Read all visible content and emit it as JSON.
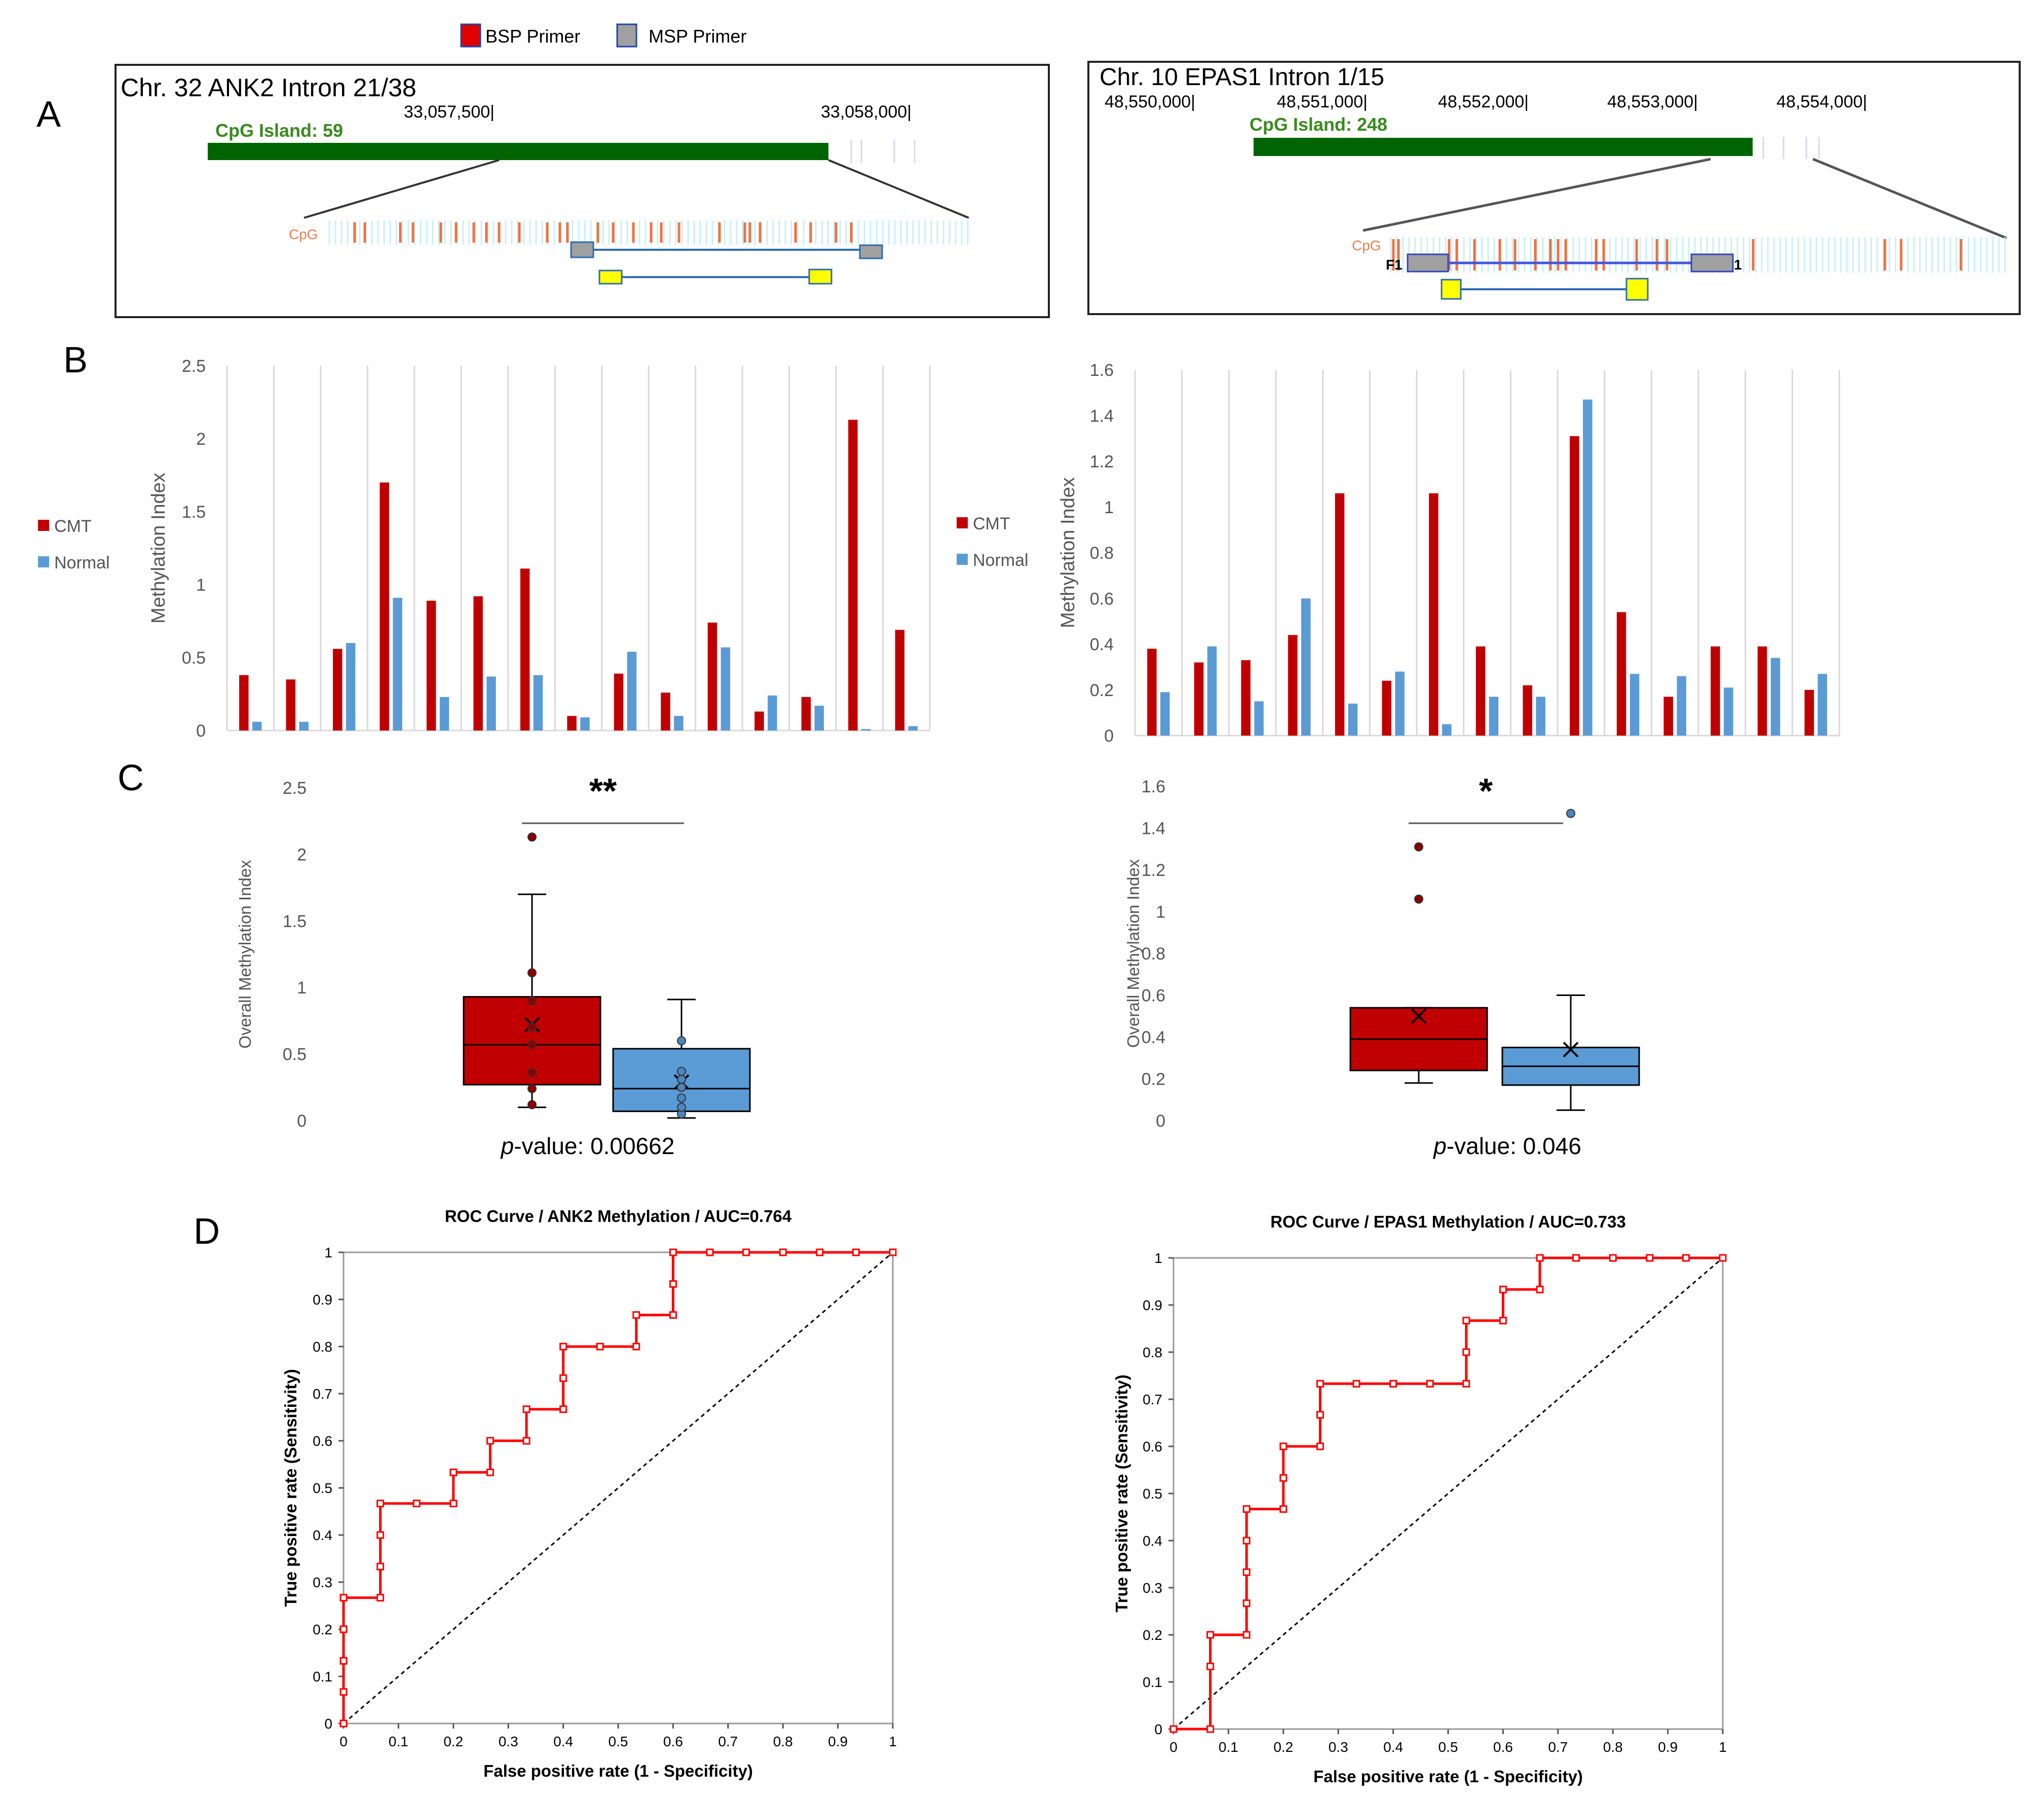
{
  "legend_top": {
    "bsp": "BSP Primer",
    "msp": "MSP Primer"
  },
  "panel_labels": {
    "a": "A",
    "b": "B",
    "c": "C",
    "d": "D"
  },
  "colors": {
    "cmt": "#c00000",
    "normal": "#5b9bd5",
    "island": "#006400",
    "primer_gray": "#a0a0a0",
    "primer_yellow": "#ffff00",
    "roc": "#ff0000"
  },
  "panel_a": [
    {
      "title": "Chr. 32 ANK2 Intron 21/38",
      "coords": [
        "33,057,500|",
        "33,058,000|"
      ],
      "island_label": "CpG Island: 59",
      "cpg_label": "CpG",
      "primer_labels": []
    },
    {
      "title": "Chr. 10 EPAS1 Intron 1/15",
      "coords": [
        "48,550,000|",
        "48,551,000|",
        "48,552,000|",
        "48,553,000|",
        "48,554,000|"
      ],
      "island_label": "CpG Island: 248",
      "cpg_label": "CpG",
      "primer_labels": [
        "F1",
        "1"
      ]
    }
  ],
  "chart_data": [
    {
      "id": "b-left",
      "type": "bar",
      "gene": "ANK2",
      "ylabel": "Methylation Index",
      "ylim": [
        0,
        2.5
      ],
      "yticks": [
        "0",
        "0.5",
        "1",
        "1.5",
        "2",
        "2.5"
      ],
      "legend": [
        "CMT",
        "Normal"
      ],
      "series": [
        {
          "name": "CMT",
          "values": [
            0.38,
            0.35,
            0.56,
            1.7,
            0.89,
            0.92,
            1.11,
            0.1,
            0.39,
            0.26,
            0.74,
            0.13,
            0.23,
            2.13,
            0.69
          ]
        },
        {
          "name": "Normal",
          "values": [
            0.06,
            0.06,
            0.6,
            0.91,
            0.23,
            0.37,
            0.38,
            0.09,
            0.54,
            0.1,
            0.57,
            0.24,
            0.17,
            0.01,
            0.03
          ]
        }
      ]
    },
    {
      "id": "b-right",
      "type": "bar",
      "gene": "EPAS1",
      "ylabel": "Methylation Index",
      "ylim": [
        0,
        1.6
      ],
      "yticks": [
        "0",
        "0.2",
        "0.4",
        "0.6",
        "0.8",
        "1",
        "1.2",
        "1.4",
        "1.6"
      ],
      "legend": [
        "CMT",
        "Normal"
      ],
      "series": [
        {
          "name": "CMT",
          "values": [
            0.38,
            0.32,
            0.33,
            0.44,
            1.06,
            0.24,
            1.06,
            0.39,
            0.22,
            1.31,
            0.54,
            0.17,
            0.39,
            0.39,
            0.2
          ]
        },
        {
          "name": "Normal",
          "values": [
            0.19,
            0.39,
            0.15,
            0.6,
            0.14,
            0.28,
            0.05,
            0.17,
            0.17,
            1.47,
            0.27,
            0.26,
            0.21,
            0.34,
            0.27
          ]
        }
      ]
    },
    {
      "id": "c-left",
      "type": "box",
      "ylabel": "Overall Methylation Index",
      "ylim": [
        0,
        2.5
      ],
      "yticks": [
        "0",
        "0.5",
        "1",
        "1.5",
        "2",
        "2.5"
      ],
      "significance": "**",
      "p_prefix": "p",
      "p_text": "-value: 0.00662",
      "groups": [
        {
          "name": "CMT",
          "min": 0.1,
          "q1": 0.27,
          "median": 0.57,
          "q3": 0.93,
          "max": 1.7,
          "mean": 0.72,
          "points": [
            0.12,
            0.24,
            0.36,
            0.57,
            0.7,
            0.9,
            1.11,
            2.13
          ]
        },
        {
          "name": "Normal",
          "min": 0.02,
          "q1": 0.07,
          "median": 0.24,
          "q3": 0.54,
          "max": 0.91,
          "mean": 0.29,
          "points": [
            0.05,
            0.1,
            0.17,
            0.25,
            0.31,
            0.37,
            0.6
          ]
        }
      ]
    },
    {
      "id": "c-right",
      "type": "box",
      "ylabel": "Overall Methylation Index",
      "ylim": [
        0,
        1.6
      ],
      "yticks": [
        "0",
        "0.2",
        "0.4",
        "0.6",
        "0.8",
        "1",
        "1.2",
        "1.4",
        "1.6"
      ],
      "significance": "*",
      "p_prefix": "p",
      "p_text": "-value: 0.046",
      "groups": [
        {
          "name": "CMT",
          "min": 0.18,
          "q1": 0.24,
          "median": 0.39,
          "q3": 0.54,
          "max": 0.54,
          "mean": 0.5,
          "points": [
            1.06,
            1.31
          ]
        },
        {
          "name": "Normal",
          "min": 0.05,
          "q1": 0.17,
          "median": 0.26,
          "q3": 0.35,
          "max": 0.6,
          "mean": 0.34,
          "points": [
            1.47
          ]
        }
      ]
    },
    {
      "id": "d-left",
      "type": "line",
      "title": "ROC Curve / ANK2 Methylation / AUC=0.764",
      "xlabel": "False positive rate (1 - Specificity)",
      "ylabel": "True positive rate (Sensitivity)",
      "xlim": [
        0,
        1
      ],
      "ylim": [
        0,
        1
      ],
      "ticks": [
        "0",
        "0.1",
        "0.2",
        "0.3",
        "0.4",
        "0.5",
        "0.6",
        "0.7",
        "0.8",
        "0.9",
        "1"
      ],
      "x": [
        0,
        0,
        0,
        0,
        0,
        0.067,
        0.067,
        0.067,
        0.067,
        0.133,
        0.2,
        0.2,
        0.267,
        0.267,
        0.333,
        0.333,
        0.4,
        0.4,
        0.4,
        0.467,
        0.533,
        0.533,
        0.6,
        0.6,
        0.6,
        0.667,
        0.733,
        0.8,
        0.867,
        0.933,
        1
      ],
      "y": [
        0,
        0.067,
        0.133,
        0.2,
        0.267,
        0.267,
        0.333,
        0.4,
        0.467,
        0.467,
        0.467,
        0.533,
        0.533,
        0.6,
        0.6,
        0.667,
        0.667,
        0.733,
        0.8,
        0.8,
        0.8,
        0.867,
        0.867,
        0.933,
        1,
        1,
        1,
        1,
        1,
        1,
        1
      ]
    },
    {
      "id": "d-right",
      "type": "line",
      "title": "ROC Curve /  EPAS1 Methylation / AUC=0.733",
      "xlabel": "False positive rate (1 - Specificity)",
      "ylabel": "True positive rate (Sensitivity)",
      "xlim": [
        0,
        1
      ],
      "ylim": [
        0,
        1
      ],
      "ticks": [
        "0",
        "0.1",
        "0.2",
        "0.3",
        "0.4",
        "0.5",
        "0.6",
        "0.7",
        "0.8",
        "0.9",
        "1"
      ],
      "x": [
        0,
        0.067,
        0.067,
        0.067,
        0.133,
        0.133,
        0.133,
        0.133,
        0.133,
        0.2,
        0.2,
        0.2,
        0.267,
        0.267,
        0.267,
        0.333,
        0.4,
        0.467,
        0.533,
        0.533,
        0.533,
        0.6,
        0.6,
        0.667,
        0.667,
        0.733,
        0.8,
        0.867,
        0.933,
        1
      ],
      "y": [
        0,
        0,
        0.133,
        0.2,
        0.2,
        0.267,
        0.333,
        0.4,
        0.467,
        0.467,
        0.533,
        0.6,
        0.6,
        0.667,
        0.733,
        0.733,
        0.733,
        0.733,
        0.733,
        0.8,
        0.867,
        0.867,
        0.933,
        0.933,
        1,
        1,
        1,
        1,
        1,
        1
      ]
    }
  ]
}
